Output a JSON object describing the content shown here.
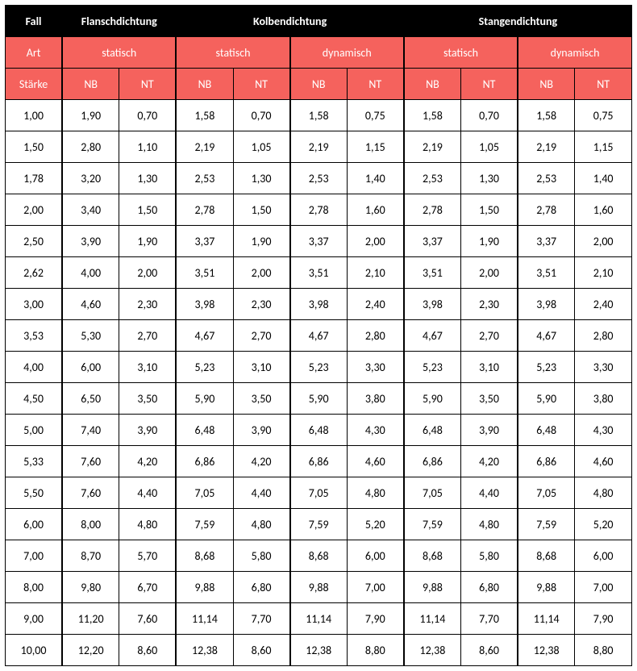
{
  "header": {
    "row1": [
      "Fall",
      "Flanschdichtung",
      "Kolbendichtung",
      "Stangendichtung"
    ],
    "row2": [
      "Art",
      "statisch",
      "statisch",
      "dynamisch",
      "statisch",
      "dynamisch"
    ],
    "row3": [
      "Stärke",
      "NB",
      "NT",
      "NB",
      "NT",
      "NB",
      "NT",
      "NB",
      "NT",
      "NB",
      "NT"
    ]
  },
  "colors": {
    "black_bg": "#000000",
    "red_bg": "#f5625d",
    "white": "#ffffff",
    "border": "#000000"
  },
  "rows": [
    [
      "1,00",
      "1,90",
      "0,70",
      "1,58",
      "0,70",
      "1,58",
      "0,75",
      "1,58",
      "0,70",
      "1,58",
      "0,75"
    ],
    [
      "1,50",
      "2,80",
      "1,10",
      "2,19",
      "1,05",
      "2,19",
      "1,15",
      "2,19",
      "1,05",
      "2,19",
      "1,15"
    ],
    [
      "1,78",
      "3,20",
      "1,30",
      "2,53",
      "1,30",
      "2,53",
      "1,40",
      "2,53",
      "1,30",
      "2,53",
      "1,40"
    ],
    [
      "2,00",
      "3,40",
      "1,50",
      "2,78",
      "1,50",
      "2,78",
      "1,60",
      "2,78",
      "1,50",
      "2,78",
      "1,60"
    ],
    [
      "2,50",
      "3,90",
      "1,90",
      "3,37",
      "1,90",
      "3,37",
      "2,00",
      "3,37",
      "1,90",
      "3,37",
      "2,00"
    ],
    [
      "2,62",
      "4,00",
      "2,00",
      "3,51",
      "2,00",
      "3,51",
      "2,10",
      "3,51",
      "2,00",
      "3,51",
      "2,10"
    ],
    [
      "3,00",
      "4,60",
      "2,30",
      "3,98",
      "2,30",
      "3,98",
      "2,40",
      "3,98",
      "2,30",
      "3,98",
      "2,40"
    ],
    [
      "3,53",
      "5,30",
      "2,70",
      "4,67",
      "2,70",
      "4,67",
      "2,80",
      "4,67",
      "2,70",
      "4,67",
      "2,80"
    ],
    [
      "4,00",
      "6,00",
      "3,10",
      "5,23",
      "3,10",
      "5,23",
      "3,30",
      "5,23",
      "3,10",
      "5,23",
      "3,30"
    ],
    [
      "4,50",
      "6,50",
      "3,50",
      "5,90",
      "3,50",
      "5,90",
      "3,80",
      "5,90",
      "3,50",
      "5,90",
      "3,80"
    ],
    [
      "5,00",
      "7,40",
      "3,90",
      "6,48",
      "3,90",
      "6,48",
      "4,30",
      "6,48",
      "3,90",
      "6,48",
      "4,30"
    ],
    [
      "5,33",
      "7,60",
      "4,20",
      "6,86",
      "4,20",
      "6,86",
      "4,60",
      "6,86",
      "4,20",
      "6,86",
      "4,60"
    ],
    [
      "5,50",
      "7,60",
      "4,40",
      "7,05",
      "4,40",
      "7,05",
      "4,80",
      "7,05",
      "4,40",
      "7,05",
      "4,80"
    ],
    [
      "6,00",
      "8,00",
      "4,80",
      "7,59",
      "4,80",
      "7,59",
      "5,20",
      "7,59",
      "4,80",
      "7,59",
      "5,20"
    ],
    [
      "7,00",
      "8,70",
      "5,70",
      "8,68",
      "5,80",
      "8,68",
      "6,00",
      "8,68",
      "5,80",
      "8,68",
      "6,00"
    ],
    [
      "8,00",
      "9,80",
      "6,70",
      "9,88",
      "6,80",
      "9,88",
      "7,00",
      "9,88",
      "6,80",
      "9,88",
      "7,00"
    ],
    [
      "9,00",
      "11,20",
      "7,60",
      "11,14",
      "7,70",
      "11,14",
      "7,90",
      "11,14",
      "7,70",
      "11,14",
      "7,90"
    ],
    [
      "10,00",
      "12,20",
      "8,60",
      "12,38",
      "8,60",
      "12,38",
      "8,80",
      "12,38",
      "8,60",
      "12,38",
      "8,80"
    ]
  ]
}
